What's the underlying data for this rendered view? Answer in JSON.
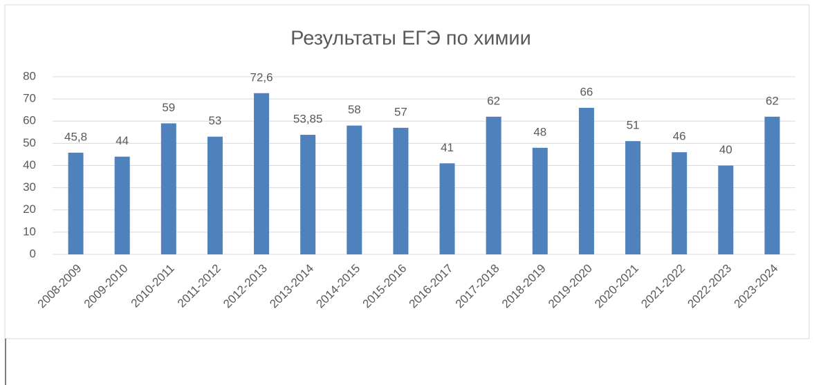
{
  "chart_data": {
    "type": "bar",
    "title": "Результаты ЕГЭ по химии",
    "categories": [
      "2008-2009",
      "2009-2010",
      "2010-2011",
      "2011-2012",
      "2012-2013",
      "2013-2014",
      "2014-2015",
      "2015-2016",
      "2016-2017",
      "2017-2018",
      "2018-2019",
      "2019-2020",
      "2020-2021",
      "2021-2022",
      "2022-2023",
      "2023-2024"
    ],
    "values": [
      45.8,
      44,
      59,
      53,
      72.6,
      53.85,
      58,
      57,
      41,
      62,
      48,
      66,
      51,
      46,
      40,
      62
    ],
    "value_labels": [
      "45,8",
      "44",
      "59",
      "53",
      "72,6",
      "53,85",
      "58",
      "57",
      "41",
      "62",
      "48",
      "66",
      "51",
      "46",
      "40",
      "62"
    ],
    "color": "#4f81bd",
    "ylim": [
      0,
      80
    ],
    "yticks": [
      0,
      10,
      20,
      30,
      40,
      50,
      60,
      70,
      80
    ],
    "grid": true
  }
}
